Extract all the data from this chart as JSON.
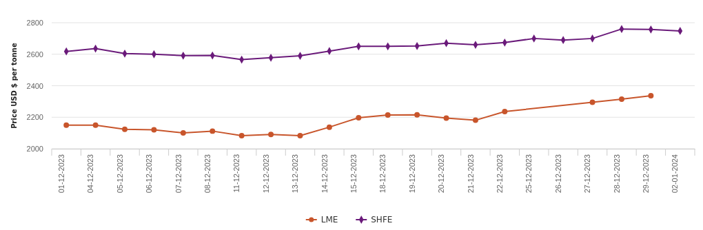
{
  "chart_data": {
    "type": "line",
    "ylabel": "Price USD $ per tonne",
    "categories": [
      "01-12-2023",
      "04-12-2023",
      "05-12-2023",
      "06-12-2023",
      "07-12-2023",
      "08-12-2023",
      "11-12-2023",
      "12-12-2023",
      "13-12-2023",
      "14-12-2023",
      "15-12-2023",
      "18-12-2023",
      "19-12-2023",
      "20-12-2023",
      "21-12-2023",
      "22-12-2023",
      "25-12-2023",
      "26-12-2023",
      "27-12-2023",
      "28-12-2023",
      "29-12-2023",
      "02-01-2024"
    ],
    "series": [
      {
        "name": "LME",
        "color": "#c8552b",
        "marker": "circle",
        "values": [
          2150,
          2150,
          2123,
          2120,
          2101,
          2112,
          2083,
          2091,
          2083,
          2137,
          2197,
          2214,
          2215,
          2195,
          2181,
          2236,
          null,
          null,
          2295,
          2315,
          2337,
          null
        ]
      },
      {
        "name": "SHFE",
        "color": "#6a1a7a",
        "marker": "diamond",
        "values": [
          2618,
          2636,
          2604,
          2600,
          2591,
          2592,
          2566,
          2578,
          2590,
          2620,
          2650,
          2650,
          2652,
          2670,
          2660,
          2674,
          2700,
          2690,
          2700,
          2760,
          2757,
          2748
        ]
      }
    ],
    "ylim": [
      2000,
      2800
    ],
    "yticks": [
      2000,
      2200,
      2400,
      2600,
      2800
    ],
    "grid": "y",
    "legend": "bottom"
  }
}
